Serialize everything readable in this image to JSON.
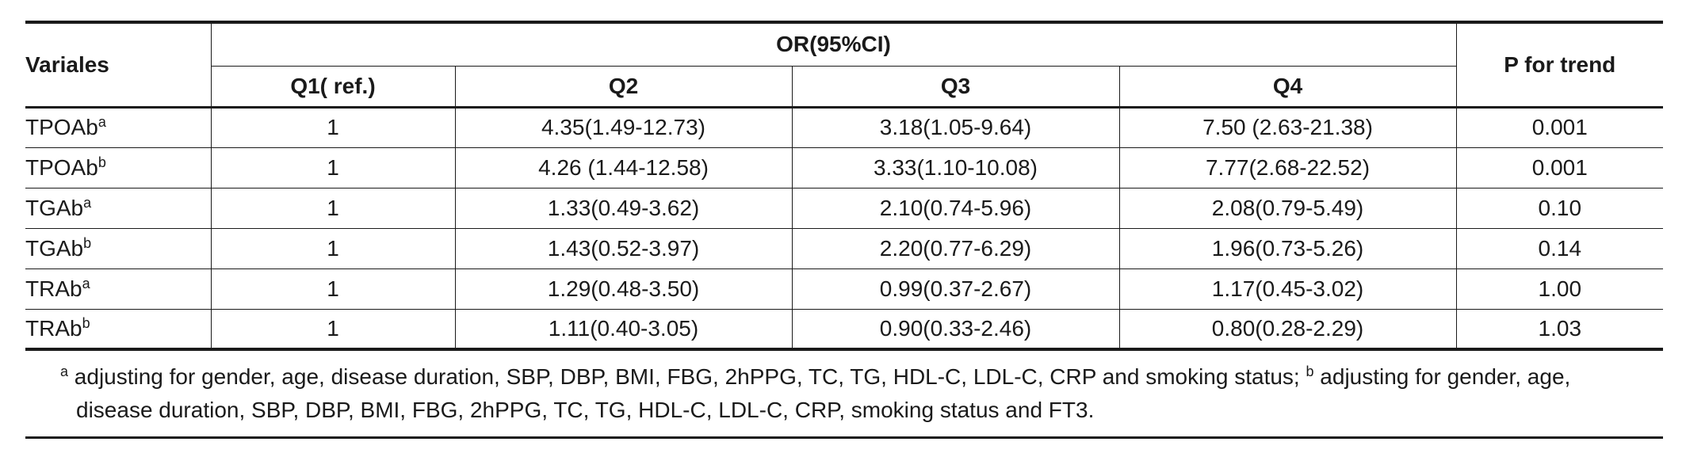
{
  "table": {
    "header": {
      "variables": "Variales",
      "group": "OR(95%CI)",
      "p_trend": "P for trend",
      "quartiles": [
        "Q1( ref.)",
        "Q2",
        "Q3",
        "Q4"
      ]
    },
    "rows": [
      {
        "name": "TPOAb",
        "sup": "a",
        "q1": "1",
        "q2": "4.35(1.49-12.73)",
        "q3": "3.18(1.05-9.64)",
        "q4": "7.50 (2.63-21.38)",
        "p": "0.001"
      },
      {
        "name": "TPOAb",
        "sup": "b",
        "q1": "1",
        "q2": "4.26 (1.44-12.58)",
        "q3": "3.33(1.10-10.08)",
        "q4": "7.77(2.68-22.52)",
        "p": "0.001"
      },
      {
        "name": "TGAb",
        "sup": "a",
        "q1": "1",
        "q2": "1.33(0.49-3.62)",
        "q3": "2.10(0.74-5.96)",
        "q4": "2.08(0.79-5.49)",
        "p": "0.10"
      },
      {
        "name": "TGAb",
        "sup": "b",
        "q1": "1",
        "q2": "1.43(0.52-3.97)",
        "q3": "2.20(0.77-6.29)",
        "q4": "1.96(0.73-5.26)",
        "p": "0.14"
      },
      {
        "name": "TRAb",
        "sup": "a",
        "q1": "1",
        "q2": "1.29(0.48-3.50)",
        "q3": "0.99(0.37-2.67)",
        "q4": "1.17(0.45-3.02)",
        "p": "1.00"
      },
      {
        "name": "TRAb",
        "sup": "b",
        "q1": "1",
        "q2": "1.11(0.40-3.05)",
        "q3": "0.90(0.33-2.46)",
        "q4": "0.80(0.28-2.29)",
        "p": "1.03"
      }
    ]
  },
  "footnote": {
    "a_mark": "a",
    "a_text": " adjusting for gender, age, disease duration, SBP, DBP, BMI, FBG, 2hPPG, TC, TG, HDL-C, LDL-C, CRP and smoking status; ",
    "b_mark": "b",
    "b_text": " adjusting for gender, age,",
    "b_text_cont": "disease duration, SBP, DBP, BMI, FBG, 2hPPG, TC, TG, HDL-C, LDL-C, CRP, smoking status and FT3."
  }
}
